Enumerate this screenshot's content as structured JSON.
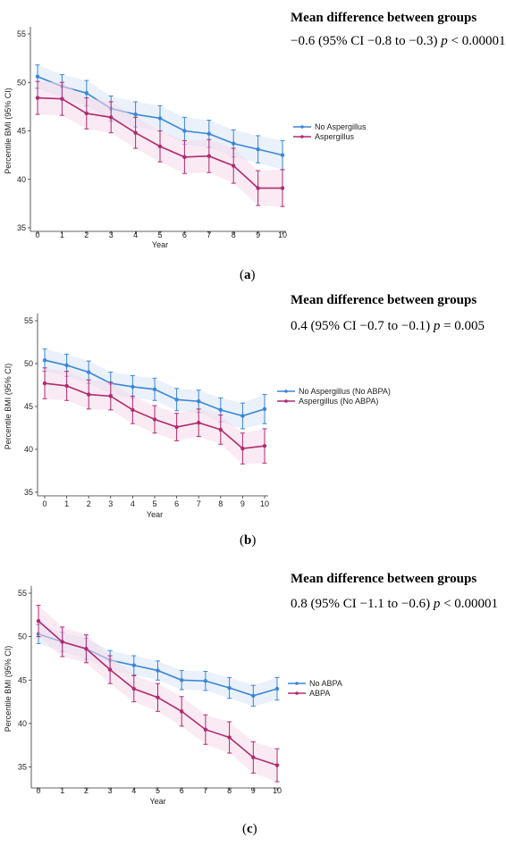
{
  "colors": {
    "series_blue": "#3a86d6",
    "series_magenta": "#b02a6e",
    "band_blue": "#d9e6f7",
    "band_magenta": "#f6d9ea"
  },
  "chart_data": [
    {
      "type": "line",
      "panel_label": "a",
      "md_header": "Mean difference between groups",
      "md_value": "−0.6 (95% CI −0.8 to −0.3)",
      "md_p": "p",
      "md_p_value": "< 0.00001",
      "xlabel": "Year",
      "ylabel": "Percentile BMI  (95% CI)",
      "xlim": [
        0,
        10
      ],
      "ylim": [
        35,
        55
      ],
      "xticks": [
        "0",
        "1",
        "2",
        "3",
        "4",
        "5",
        "6",
        "7",
        "8",
        "9",
        "10"
      ],
      "yticks": [
        "35",
        "40",
        "45",
        "50",
        "55"
      ],
      "x": [
        0,
        1,
        2,
        3,
        4,
        5,
        6,
        7,
        8,
        9,
        10
      ],
      "series": [
        {
          "name": "No Aspergillus",
          "color": "#3a86d6",
          "values": [
            50.6,
            49.6,
            48.9,
            47.3,
            46.7,
            46.3,
            45.0,
            44.7,
            43.7,
            43.1,
            42.5
          ],
          "lower": [
            49.4,
            48.4,
            47.6,
            46.0,
            45.4,
            45.0,
            43.6,
            43.3,
            42.3,
            41.7,
            41.0
          ],
          "upper": [
            51.8,
            50.8,
            50.2,
            48.6,
            48.0,
            47.6,
            46.4,
            46.1,
            45.1,
            44.5,
            44.0
          ]
        },
        {
          "name": "Aspergillus",
          "color": "#b02a6e",
          "values": [
            48.4,
            48.3,
            46.8,
            46.4,
            44.8,
            43.4,
            42.3,
            42.4,
            41.4,
            39.1,
            39.1
          ],
          "lower": [
            46.7,
            46.6,
            45.2,
            44.8,
            43.2,
            41.8,
            40.6,
            40.7,
            39.6,
            37.3,
            37.2
          ],
          "upper": [
            50.1,
            50.0,
            48.4,
            48.0,
            46.4,
            45.0,
            44.0,
            44.1,
            43.2,
            40.9,
            41.0
          ]
        }
      ]
    },
    {
      "type": "line",
      "panel_label": "b",
      "md_header": "Mean difference between groups",
      "md_value": "0.4 (95% CI −0.7 to −0.1)",
      "md_p": "p",
      "md_p_value": "= 0.005",
      "xlabel": "Year",
      "ylabel": "Percentile BMI  (95% CI)",
      "xlim": [
        0,
        10
      ],
      "ylim": [
        35,
        55
      ],
      "xticks": [
        "0",
        "1",
        "2",
        "3",
        "4",
        "5",
        "6",
        "7",
        "8",
        "9",
        "10"
      ],
      "yticks": [
        "35",
        "40",
        "45",
        "50",
        "55"
      ],
      "x": [
        0,
        1,
        2,
        3,
        4,
        5,
        6,
        7,
        8,
        9,
        10
      ],
      "series": [
        {
          "name": "No Aspergillus (No ABPA)",
          "color": "#3a86d6",
          "values": [
            50.4,
            49.8,
            49.0,
            47.7,
            47.3,
            47.0,
            45.8,
            45.6,
            44.6,
            43.9,
            44.7
          ],
          "lower": [
            49.1,
            48.5,
            47.7,
            46.4,
            46.0,
            45.7,
            44.5,
            44.3,
            43.2,
            42.4,
            43.0
          ],
          "upper": [
            51.7,
            51.1,
            50.3,
            49.0,
            48.6,
            48.3,
            47.1,
            46.9,
            46.0,
            45.4,
            46.4
          ]
        },
        {
          "name": "Aspergillus (No ABPA)",
          "color": "#b02a6e",
          "values": [
            47.7,
            47.4,
            46.4,
            46.2,
            44.6,
            43.5,
            42.6,
            43.1,
            42.3,
            40.1,
            40.4
          ],
          "lower": [
            45.9,
            45.7,
            44.7,
            44.6,
            43.0,
            41.9,
            41.0,
            41.5,
            40.6,
            38.3,
            38.4
          ],
          "upper": [
            49.5,
            49.1,
            48.1,
            47.8,
            46.2,
            45.1,
            44.2,
            44.7,
            44.0,
            41.9,
            42.4
          ]
        }
      ]
    },
    {
      "type": "line",
      "panel_label": "c",
      "md_header": "Mean difference between groups",
      "md_value": "0.8 (95% CI −1.1 to −0.6)",
      "md_p": "p",
      "md_p_value": "< 0.00001",
      "xlabel": "Year",
      "ylabel": "Percentile BMI  (95% CI)",
      "xlim": [
        0,
        10
      ],
      "ylim": [
        33,
        55
      ],
      "xticks": [
        "0",
        "1",
        "2",
        "3",
        "4",
        "5",
        "6",
        "7",
        "8",
        "9",
        "10"
      ],
      "yticks": [
        "35",
        "40",
        "45",
        "50",
        "55"
      ],
      "x": [
        0,
        1,
        2,
        3,
        4,
        5,
        6,
        7,
        8,
        9,
        10
      ],
      "series": [
        {
          "name": "No ABPA",
          "color": "#3a86d6",
          "values": [
            50.3,
            49.4,
            48.6,
            47.3,
            46.7,
            46.1,
            45.0,
            44.9,
            44.1,
            43.2,
            44.0
          ],
          "lower": [
            49.2,
            48.3,
            47.4,
            46.2,
            45.6,
            45.0,
            43.9,
            43.8,
            42.9,
            42.0,
            42.7
          ],
          "upper": [
            51.4,
            50.5,
            49.8,
            48.4,
            47.8,
            47.2,
            46.1,
            46.0,
            45.3,
            44.4,
            45.3
          ]
        },
        {
          "name": "ABPA",
          "color": "#b02a6e",
          "values": [
            51.8,
            49.4,
            48.6,
            46.2,
            44.0,
            43.0,
            41.4,
            39.3,
            38.4,
            36.1,
            35.2
          ],
          "lower": [
            50.0,
            47.7,
            47.0,
            44.6,
            42.5,
            41.4,
            39.7,
            37.6,
            36.6,
            34.3,
            33.3
          ],
          "upper": [
            53.6,
            51.1,
            50.2,
            47.8,
            45.5,
            44.6,
            43.1,
            41.0,
            40.2,
            37.9,
            37.1
          ]
        }
      ]
    }
  ]
}
